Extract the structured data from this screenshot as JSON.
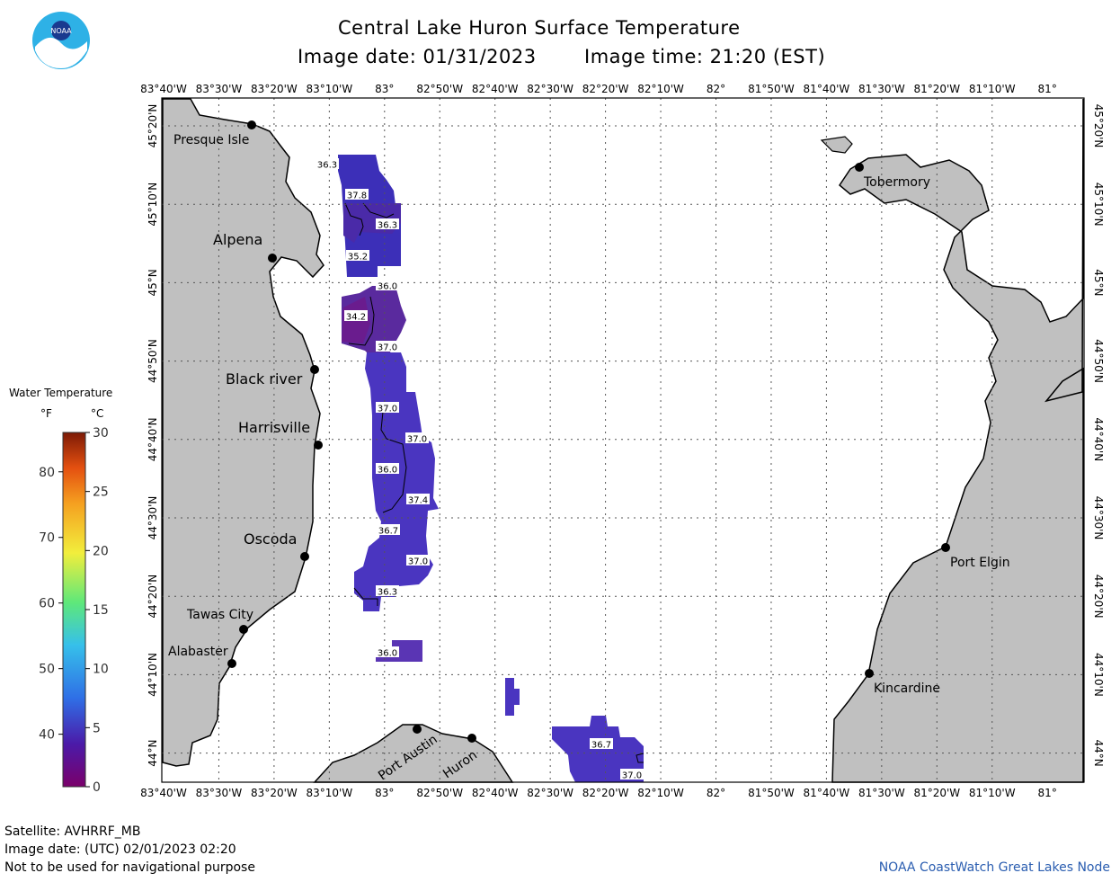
{
  "header": {
    "title": "Central Lake Huron Surface Temperature",
    "date_label": "Image date: 01/31/2023",
    "time_label": "Image time: 21:20 (EST)"
  },
  "logo": {
    "text": "NOAA",
    "icon": "noaa-logo-icon"
  },
  "axes": {
    "lon_ticks": [
      "83°40'W",
      "83°30'W",
      "83°20'W",
      "83°10'W",
      "83°",
      "82°50'W",
      "82°40'W",
      "82°30'W",
      "82°20'W",
      "82°10'W",
      "82°",
      "81°50'W",
      "81°40'W",
      "81°30'W",
      "81°20'W",
      "81°10'W",
      "81°"
    ],
    "lat_ticks": [
      "45°20'N",
      "45°10'N",
      "45°N",
      "44°50'N",
      "44°40'N",
      "44°30'N",
      "44°20'N",
      "44°10'N",
      "44°N"
    ]
  },
  "legend": {
    "title": "Water Temperature",
    "unit_f": "°F",
    "unit_c": "°C",
    "f_ticks": [
      "80",
      "70",
      "60",
      "50",
      "40"
    ],
    "c_ticks": [
      "30",
      "25",
      "20",
      "15",
      "10",
      "5",
      "0"
    ],
    "colors": [
      "#7a006a",
      "#4b1aa8",
      "#2f6fe6",
      "#36c0ea",
      "#5ee87a",
      "#f2ee3c",
      "#f5a020",
      "#e45010",
      "#7d1a06"
    ]
  },
  "places": [
    {
      "name": "Presque Isle"
    },
    {
      "name": "Alpena"
    },
    {
      "name": "Black river"
    },
    {
      "name": "Harrisville"
    },
    {
      "name": "Oscoda"
    },
    {
      "name": "Tawas City"
    },
    {
      "name": "Alabaster"
    },
    {
      "name": "Port Austin"
    },
    {
      "name": "Huron"
    },
    {
      "name": "Tobermory"
    },
    {
      "name": "Port Elgin"
    },
    {
      "name": "Kincardine"
    }
  ],
  "temp_labels": [
    "36.3",
    "37.8",
    "36.3",
    "35.2",
    "36.0",
    "34.2",
    "37.0",
    "37.0",
    "37.0",
    "36.0",
    "37.4",
    "36.7",
    "37.0",
    "36.3",
    "36.0",
    "36.7",
    "37.0"
  ],
  "footer": {
    "satellite": "Satellite: AVHRRF_MB",
    "utc_date": "Image date: (UTC) 02/01/2023  02:20",
    "disclaimer": "Not to be used for navigational purpose",
    "credit": "NOAA CoastWatch Great Lakes Node"
  }
}
